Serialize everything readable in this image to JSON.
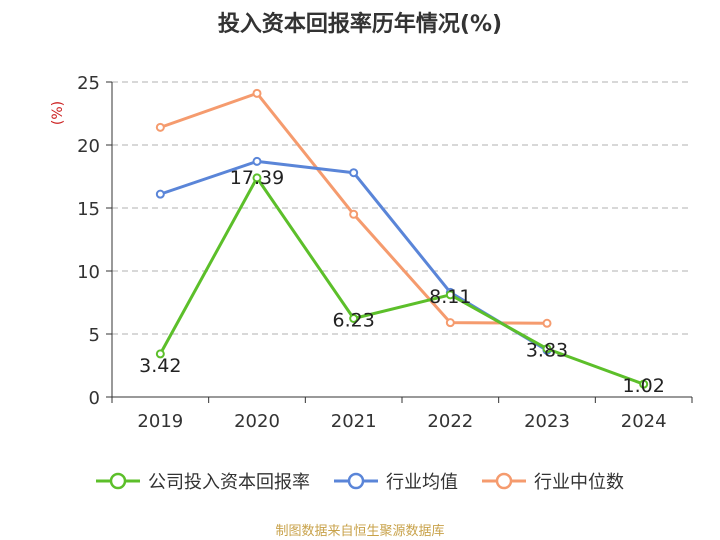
{
  "chart_data": {
    "type": "line",
    "title": "投入资本回报率历年情况(%)",
    "ylabel": "(%)",
    "xlabel": "",
    "ylim": [
      0,
      25
    ],
    "yticks": [
      0,
      5,
      10,
      15,
      20,
      25
    ],
    "categories": [
      "2019",
      "2020",
      "2021",
      "2022",
      "2023",
      "2024"
    ],
    "grid": true,
    "legend_position": "bottom",
    "series": [
      {
        "name": "公司投入资本回报率",
        "color": "#5cbf2a",
        "values": [
          3.42,
          17.39,
          6.23,
          8.11,
          3.83,
          1.02
        ],
        "show_labels": true
      },
      {
        "name": "行业均值",
        "color": "#5a85d8",
        "values": [
          16.1,
          18.7,
          17.8,
          8.3,
          3.7,
          null
        ],
        "show_labels": false
      },
      {
        "name": "行业中位数",
        "color": "#f59b6e",
        "values": [
          21.4,
          24.1,
          14.5,
          5.9,
          5.85,
          null
        ],
        "show_labels": false
      }
    ]
  },
  "source": "制图数据来自恒生聚源数据库"
}
